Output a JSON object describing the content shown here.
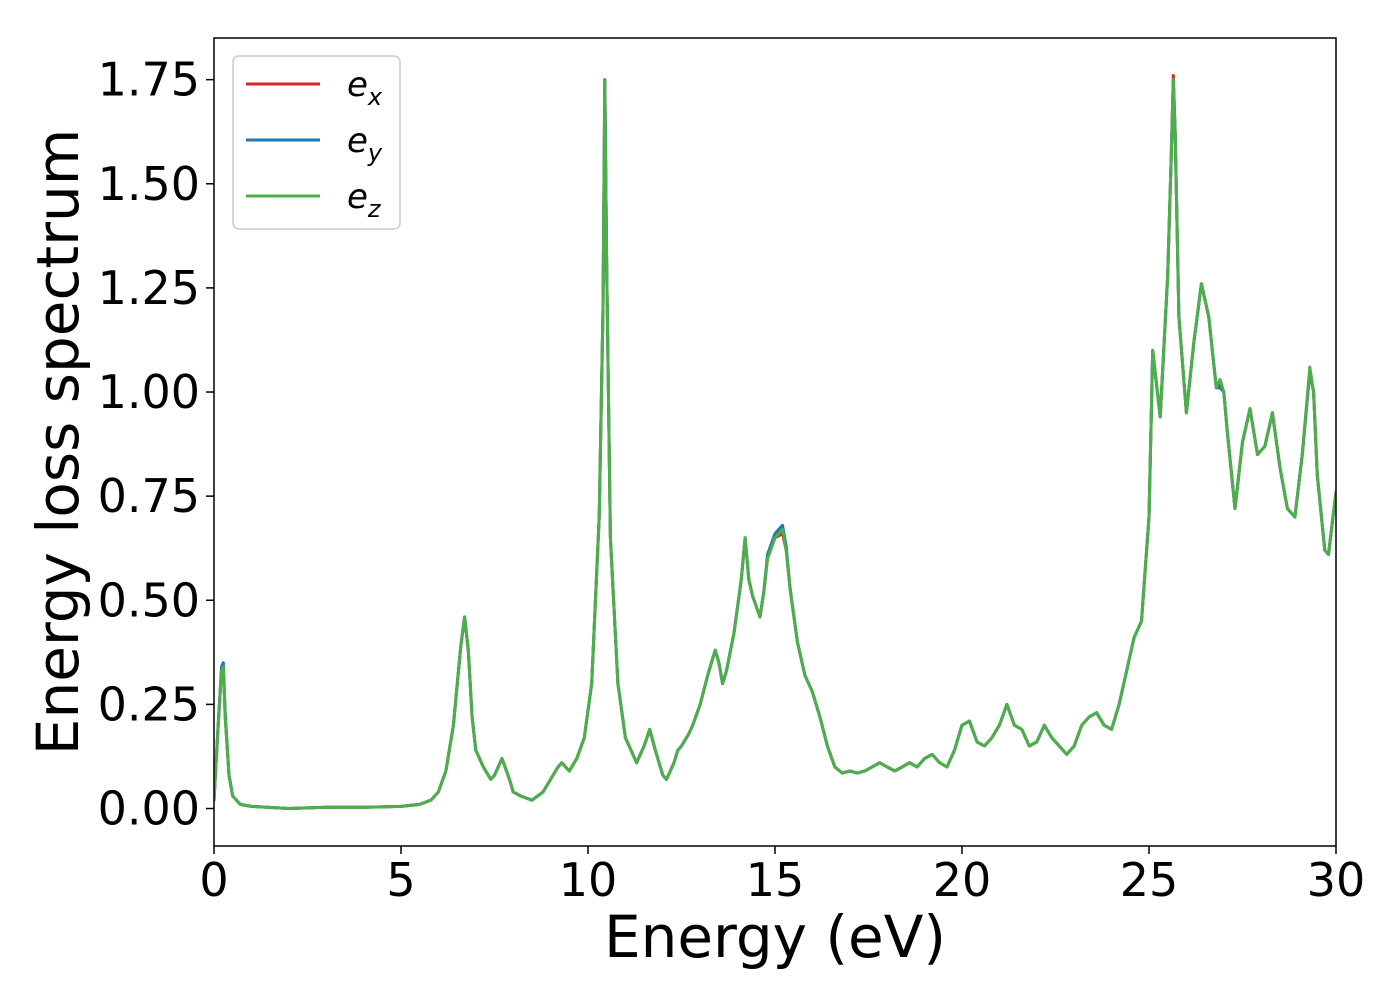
{
  "chart_data": {
    "type": "line",
    "title": "",
    "xlabel": "Energy (eV)",
    "ylabel": "Energy loss spectrum",
    "xlim": [
      0,
      30
    ],
    "ylim": [
      -0.09,
      1.85
    ],
    "xticks": [
      0,
      5,
      10,
      15,
      20,
      25,
      30
    ],
    "xtick_labels": [
      "0",
      "5",
      "10",
      "15",
      "20",
      "25",
      "30"
    ],
    "yticks": [
      0.0,
      0.25,
      0.5,
      0.75,
      1.0,
      1.25,
      1.5,
      1.75
    ],
    "ytick_labels": [
      "0.00",
      "0.25",
      "0.50",
      "0.75",
      "1.00",
      "1.25",
      "1.50",
      "1.75"
    ],
    "grid": false,
    "legend_position": "top-left",
    "x": [
      0,
      0.1,
      0.2,
      0.25,
      0.3,
      0.4,
      0.5,
      0.7,
      1.0,
      2.0,
      3.0,
      4.0,
      5.0,
      5.5,
      5.8,
      6.0,
      6.2,
      6.4,
      6.6,
      6.7,
      6.8,
      6.9,
      7.0,
      7.2,
      7.4,
      7.5,
      7.7,
      7.9,
      8.0,
      8.2,
      8.5,
      8.8,
      9.0,
      9.2,
      9.3,
      9.5,
      9.7,
      9.9,
      10.1,
      10.3,
      10.4,
      10.45,
      10.5,
      10.6,
      10.8,
      11.0,
      11.3,
      11.5,
      11.65,
      11.8,
      12.0,
      12.1,
      12.3,
      12.4,
      12.5,
      12.7,
      12.8,
      13.0,
      13.2,
      13.4,
      13.5,
      13.6,
      13.7,
      13.9,
      14.1,
      14.2,
      14.3,
      14.4,
      14.6,
      14.7,
      14.8,
      15.0,
      15.2,
      15.3,
      15.4,
      15.6,
      15.8,
      16.0,
      16.2,
      16.4,
      16.6,
      16.8,
      17.0,
      17.2,
      17.4,
      17.6,
      17.8,
      18.0,
      18.2,
      18.4,
      18.6,
      18.8,
      19.0,
      19.2,
      19.4,
      19.6,
      19.8,
      20.0,
      20.2,
      20.4,
      20.6,
      20.8,
      21.0,
      21.2,
      21.4,
      21.6,
      21.8,
      22.0,
      22.2,
      22.4,
      22.6,
      22.8,
      23.0,
      23.2,
      23.4,
      23.6,
      23.8,
      24.0,
      24.2,
      24.4,
      24.6,
      24.8,
      25.0,
      25.1,
      25.3,
      25.5,
      25.6,
      25.65,
      25.7,
      25.8,
      26.0,
      26.2,
      26.4,
      26.6,
      26.8,
      26.9,
      27.0,
      27.1,
      27.3,
      27.5,
      27.7,
      27.9,
      28.1,
      28.3,
      28.5,
      28.7,
      28.9,
      29.1,
      29.3,
      29.4,
      29.5,
      29.7,
      29.8,
      30.0
    ],
    "series": [
      {
        "name": "e_x",
        "color": "#d62728",
        "values": [
          0.02,
          0.18,
          0.33,
          0.34,
          0.22,
          0.08,
          0.03,
          0.01,
          0.005,
          0.0,
          0.003,
          0.003,
          0.005,
          0.01,
          0.02,
          0.04,
          0.09,
          0.2,
          0.39,
          0.46,
          0.38,
          0.22,
          0.14,
          0.1,
          0.07,
          0.08,
          0.12,
          0.07,
          0.04,
          0.03,
          0.02,
          0.04,
          0.07,
          0.1,
          0.11,
          0.09,
          0.12,
          0.17,
          0.3,
          0.7,
          1.2,
          1.75,
          1.3,
          0.65,
          0.3,
          0.17,
          0.11,
          0.15,
          0.19,
          0.14,
          0.08,
          0.07,
          0.11,
          0.14,
          0.15,
          0.18,
          0.2,
          0.25,
          0.32,
          0.38,
          0.35,
          0.3,
          0.33,
          0.42,
          0.55,
          0.65,
          0.55,
          0.51,
          0.46,
          0.52,
          0.6,
          0.65,
          0.66,
          0.62,
          0.53,
          0.4,
          0.32,
          0.28,
          0.22,
          0.15,
          0.1,
          0.085,
          0.09,
          0.085,
          0.09,
          0.1,
          0.11,
          0.1,
          0.09,
          0.1,
          0.11,
          0.1,
          0.12,
          0.13,
          0.11,
          0.1,
          0.14,
          0.2,
          0.21,
          0.16,
          0.15,
          0.17,
          0.2,
          0.25,
          0.2,
          0.19,
          0.15,
          0.16,
          0.2,
          0.17,
          0.15,
          0.13,
          0.15,
          0.2,
          0.22,
          0.23,
          0.2,
          0.19,
          0.25,
          0.33,
          0.41,
          0.45,
          0.7,
          1.1,
          0.94,
          1.28,
          1.58,
          1.76,
          1.62,
          1.18,
          0.95,
          1.12,
          1.26,
          1.18,
          1.01,
          1.02,
          1.0,
          0.9,
          0.72,
          0.88,
          0.96,
          0.85,
          0.87,
          0.95,
          0.82,
          0.72,
          0.7,
          0.85,
          1.05,
          1.0,
          0.8,
          0.62,
          0.61,
          0.76
        ]
      },
      {
        "name": "e_y",
        "color": "#1f77b4",
        "values": [
          0.02,
          0.18,
          0.34,
          0.35,
          0.23,
          0.08,
          0.03,
          0.01,
          0.005,
          0.0,
          0.003,
          0.003,
          0.005,
          0.01,
          0.02,
          0.04,
          0.09,
          0.2,
          0.39,
          0.46,
          0.38,
          0.22,
          0.14,
          0.1,
          0.07,
          0.08,
          0.12,
          0.07,
          0.04,
          0.03,
          0.02,
          0.04,
          0.07,
          0.1,
          0.11,
          0.09,
          0.12,
          0.17,
          0.3,
          0.7,
          1.2,
          1.75,
          1.3,
          0.65,
          0.3,
          0.17,
          0.11,
          0.15,
          0.19,
          0.14,
          0.08,
          0.07,
          0.11,
          0.14,
          0.15,
          0.18,
          0.2,
          0.25,
          0.32,
          0.38,
          0.35,
          0.3,
          0.33,
          0.42,
          0.55,
          0.65,
          0.55,
          0.51,
          0.46,
          0.52,
          0.61,
          0.66,
          0.68,
          0.63,
          0.53,
          0.4,
          0.32,
          0.28,
          0.22,
          0.15,
          0.1,
          0.085,
          0.09,
          0.085,
          0.09,
          0.1,
          0.11,
          0.1,
          0.09,
          0.1,
          0.11,
          0.1,
          0.12,
          0.13,
          0.11,
          0.1,
          0.14,
          0.2,
          0.21,
          0.16,
          0.15,
          0.17,
          0.2,
          0.25,
          0.2,
          0.19,
          0.15,
          0.16,
          0.2,
          0.17,
          0.15,
          0.13,
          0.15,
          0.2,
          0.22,
          0.23,
          0.2,
          0.19,
          0.25,
          0.33,
          0.41,
          0.45,
          0.7,
          1.1,
          0.94,
          1.28,
          1.58,
          1.75,
          1.62,
          1.18,
          0.95,
          1.12,
          1.26,
          1.18,
          1.01,
          1.01,
          1.0,
          0.9,
          0.72,
          0.88,
          0.96,
          0.85,
          0.87,
          0.95,
          0.82,
          0.72,
          0.7,
          0.85,
          1.05,
          1.0,
          0.8,
          0.62,
          0.61,
          0.76
        ]
      },
      {
        "name": "e_z",
        "color": "#4daf4a",
        "values": [
          0.02,
          0.18,
          0.33,
          0.34,
          0.22,
          0.08,
          0.03,
          0.01,
          0.005,
          0.0,
          0.003,
          0.003,
          0.005,
          0.01,
          0.02,
          0.04,
          0.09,
          0.2,
          0.39,
          0.46,
          0.38,
          0.22,
          0.14,
          0.1,
          0.07,
          0.08,
          0.12,
          0.07,
          0.04,
          0.03,
          0.02,
          0.04,
          0.07,
          0.1,
          0.11,
          0.09,
          0.12,
          0.17,
          0.3,
          0.7,
          1.2,
          1.75,
          1.3,
          0.65,
          0.3,
          0.17,
          0.11,
          0.15,
          0.19,
          0.14,
          0.08,
          0.07,
          0.11,
          0.14,
          0.15,
          0.18,
          0.2,
          0.25,
          0.32,
          0.38,
          0.35,
          0.3,
          0.33,
          0.42,
          0.55,
          0.65,
          0.55,
          0.51,
          0.46,
          0.52,
          0.6,
          0.65,
          0.67,
          0.62,
          0.53,
          0.4,
          0.32,
          0.28,
          0.22,
          0.15,
          0.1,
          0.085,
          0.09,
          0.085,
          0.09,
          0.1,
          0.11,
          0.1,
          0.09,
          0.1,
          0.11,
          0.1,
          0.12,
          0.13,
          0.11,
          0.1,
          0.14,
          0.2,
          0.21,
          0.16,
          0.15,
          0.17,
          0.2,
          0.25,
          0.2,
          0.19,
          0.15,
          0.16,
          0.2,
          0.17,
          0.15,
          0.13,
          0.15,
          0.2,
          0.22,
          0.23,
          0.2,
          0.19,
          0.25,
          0.33,
          0.41,
          0.45,
          0.7,
          1.1,
          0.94,
          1.28,
          1.58,
          1.75,
          1.62,
          1.18,
          0.95,
          1.12,
          1.26,
          1.18,
          1.01,
          1.03,
          1.0,
          0.9,
          0.72,
          0.88,
          0.96,
          0.85,
          0.87,
          0.95,
          0.82,
          0.72,
          0.7,
          0.85,
          1.06,
          1.0,
          0.8,
          0.62,
          0.61,
          0.76
        ]
      }
    ],
    "legend": [
      {
        "base": "e",
        "sub": "x",
        "color": "#d62728"
      },
      {
        "base": "e",
        "sub": "y",
        "color": "#1f77b4"
      },
      {
        "base": "e",
        "sub": "z",
        "color": "#4daf4a"
      }
    ]
  }
}
